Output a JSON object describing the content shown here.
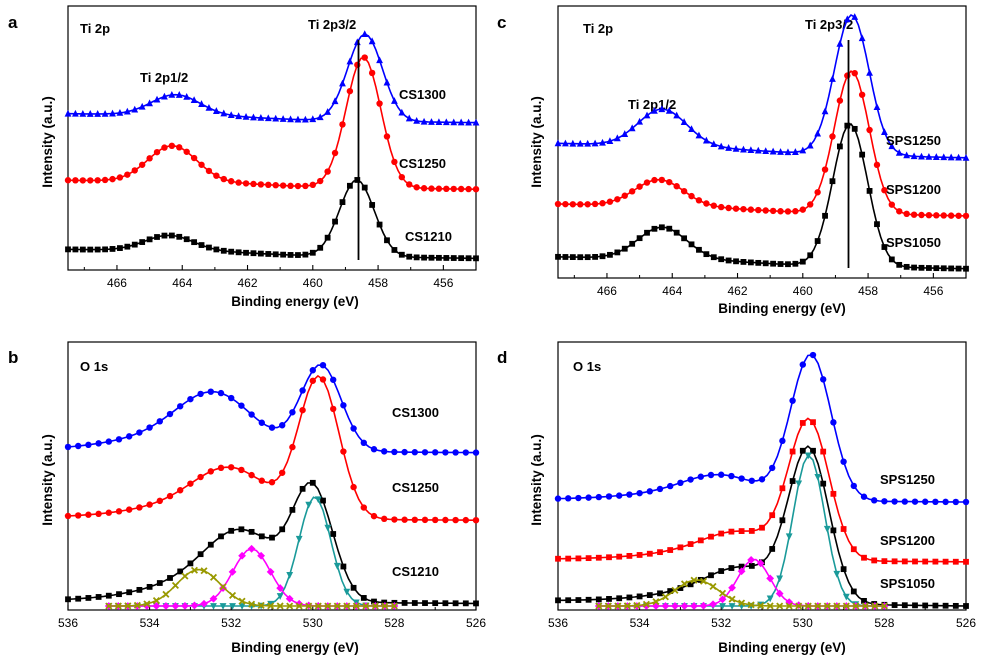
{
  "colors": {
    "black": "#000000",
    "red": "#ff0000",
    "blue": "#0000ff",
    "magenta": "#ff00ff",
    "olive": "#999900",
    "teal": "#1a9a9a",
    "darkblue": "#1a4aa0"
  },
  "chart_data": [
    {
      "panel": "a",
      "type": "line",
      "xlabel": "Binding energy (eV)",
      "ylabel": "Intensity (a.u.)",
      "xlim": [
        467.5,
        455
      ],
      "xticks": [
        466,
        464,
        462,
        460,
        458,
        456
      ],
      "ylim": [
        0,
        1
      ],
      "annotations": [
        "Ti 2p",
        "Ti 2p1/2",
        "Ti 2p3/2"
      ],
      "reference_line_x": 458.6,
      "series": [
        {
          "name": "CS1300",
          "color": "blue",
          "marker": "triangle",
          "baseline": 0.58,
          "tail": 0.56,
          "peak_x": 458.4,
          "peak_h": 0.34,
          "sat_x": 464.2,
          "sat_h": 0.08
        },
        {
          "name": "CS1250",
          "color": "red",
          "marker": "circle",
          "baseline": 0.32,
          "tail": 0.3,
          "peak_x": 458.45,
          "peak_h": 0.51,
          "sat_x": 464.3,
          "sat_h": 0.14
        },
        {
          "name": "CS1210",
          "color": "black",
          "marker": "square",
          "baseline": 0.05,
          "tail": 0.03,
          "peak_x": 458.65,
          "peak_h": 0.3,
          "sat_x": 464.4,
          "sat_h": 0.06
        }
      ]
    },
    {
      "panel": "b",
      "type": "line",
      "xlabel": "Binding energy (eV)",
      "ylabel": "Intensity (a.u.)",
      "xlim": [
        536,
        526
      ],
      "xticks": [
        536,
        534,
        532,
        530,
        528,
        526
      ],
      "ylim": [
        0,
        1
      ],
      "annotations": [
        "O 1s"
      ],
      "series": [
        {
          "name": "CS1300",
          "color": "blue",
          "marker": "circle",
          "baseline": 0.6,
          "tail": 0.59,
          "peak_x": 529.8,
          "peak_h": 0.33,
          "shoulder_x": 532.4,
          "shoulder_h": 0.16
        },
        {
          "name": "CS1250",
          "color": "red",
          "marker": "circle",
          "baseline": 0.34,
          "tail": 0.33,
          "peak_x": 529.85,
          "peak_h": 0.54,
          "shoulder_x": 532.0,
          "shoulder_h": 0.14
        },
        {
          "name": "CS1210",
          "color": "black",
          "marker": "square",
          "baseline": 0.02,
          "tail": 0.01,
          "peak_x": 530.0,
          "peak_h": 0.42,
          "shoulder_x": 531.7,
          "shoulder_h": 0.2
        },
        {
          "name": "",
          "color": "teal",
          "marker": "triangle-down",
          "fit": true,
          "center": 529.95,
          "height": 0.42,
          "width": 0.55
        },
        {
          "name": "",
          "color": "magenta",
          "marker": "diamond",
          "fit": true,
          "center": 531.5,
          "height": 0.22,
          "width": 0.65
        },
        {
          "name": "",
          "color": "olive",
          "marker": "x",
          "fit": true,
          "center": 532.8,
          "height": 0.14,
          "width": 0.75
        }
      ]
    },
    {
      "panel": "c",
      "type": "line",
      "xlabel": "Binding energy (eV)",
      "ylabel": "Intensity (a.u.)",
      "xlim": [
        467.5,
        455
      ],
      "xticks": [
        466,
        464,
        462,
        460,
        458,
        456
      ],
      "ylim": [
        0,
        1
      ],
      "annotations": [
        "Ti 2p",
        "Ti 2p1/2",
        "Ti 2p3/2"
      ],
      "reference_line_x": 458.6,
      "series": [
        {
          "name": "SPS1250",
          "color": "blue",
          "marker": "triangle",
          "baseline": 0.48,
          "tail": 0.44,
          "peak_x": 458.5,
          "peak_h": 0.53,
          "sat_x": 464.3,
          "sat_h": 0.14
        },
        {
          "name": "SPS1200",
          "color": "red",
          "marker": "circle",
          "baseline": 0.25,
          "tail": 0.22,
          "peak_x": 458.5,
          "peak_h": 0.54,
          "sat_x": 464.4,
          "sat_h": 0.1
        },
        {
          "name": "SPS1050",
          "color": "black",
          "marker": "square",
          "baseline": 0.05,
          "tail": 0.02,
          "peak_x": 458.55,
          "peak_h": 0.54,
          "sat_x": 464.3,
          "sat_h": 0.12
        }
      ]
    },
    {
      "panel": "d",
      "type": "line",
      "xlabel": "Binding energy (eV)",
      "ylabel": "Intensity (a.u.)",
      "xlim": [
        536,
        526
      ],
      "xticks": [
        536,
        534,
        532,
        530,
        528,
        526
      ],
      "ylim": [
        0,
        1
      ],
      "annotations": [
        "O 1s"
      ],
      "series": [
        {
          "name": "SPS1250",
          "color": "blue",
          "marker": "circle",
          "baseline": 0.41,
          "tail": 0.4,
          "peak_x": 529.8,
          "peak_h": 0.56,
          "shoulder_x": 532.0,
          "shoulder_h": 0.07
        },
        {
          "name": "SPS1200",
          "color": "red",
          "marker": "square",
          "baseline": 0.18,
          "tail": 0.17,
          "peak_x": 529.85,
          "peak_h": 0.53,
          "shoulder_x": 531.5,
          "shoulder_h": 0.08
        },
        {
          "name": "SPS1050",
          "color": "black",
          "marker": "square",
          "baseline": 0.02,
          "tail": 0.0,
          "peak_x": 529.85,
          "peak_h": 0.58,
          "shoulder_x": 531.4,
          "shoulder_h": 0.1
        },
        {
          "name": "",
          "color": "teal",
          "marker": "triangle-down",
          "fit": true,
          "center": 529.85,
          "height": 0.58,
          "width": 0.55
        },
        {
          "name": "",
          "color": "magenta",
          "marker": "diamond",
          "fit": true,
          "center": 531.2,
          "height": 0.18,
          "width": 0.55
        },
        {
          "name": "",
          "color": "olive",
          "marker": "x",
          "fit": true,
          "center": 532.6,
          "height": 0.1,
          "width": 0.75
        }
      ]
    }
  ]
}
